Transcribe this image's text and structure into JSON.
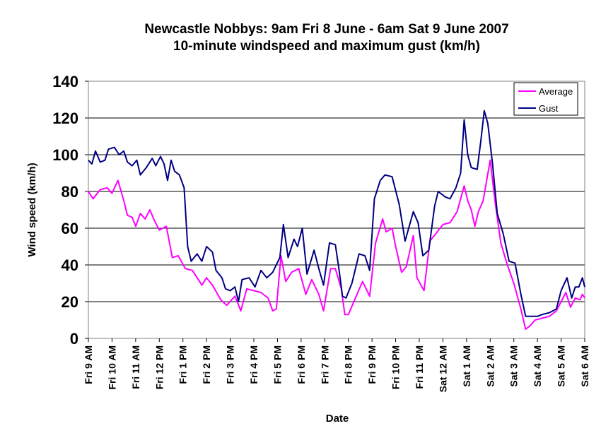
{
  "chart_data": {
    "type": "line",
    "title": "Newcastle Nobbys: 9am Fri 8 June  -  6am Sat 9 June 2007",
    "subtitle": "10-minute windspeed and maximum gust (km/h)",
    "xlabel": "Date",
    "ylabel": "Wind speed (km/h)",
    "ylim": [
      0,
      140
    ],
    "yticks": [
      0,
      20,
      40,
      60,
      80,
      100,
      120,
      140
    ],
    "grid": true,
    "legend_position": "top-right",
    "x_range_hours": [
      0,
      21
    ],
    "categories": [
      "Fri 9 AM",
      "Fri 10 AM",
      "Fri 11 AM",
      "Fri 12 PM",
      "Fri 1 PM",
      "Fri 2 PM",
      "Fri 3 PM",
      "Fri 4 PM",
      "Fri 5 PM",
      "Fri 6 PM",
      "Fri 7 PM",
      "Fri 8 PM",
      "Fri 9 PM",
      "Fri 10 PM",
      "Fri 11 PM",
      "Sat 12 AM",
      "Sat 1 AM",
      "Sat 2 AM",
      "Sat 3 AM",
      "Sat 4 AM",
      "Sat 5 AM",
      "Sat 6 AM"
    ],
    "series": [
      {
        "name": "Average",
        "color": "#ff00ff",
        "points": [
          [
            0,
            80
          ],
          [
            0.2,
            76
          ],
          [
            0.5,
            81
          ],
          [
            0.8,
            82
          ],
          [
            1.0,
            79
          ],
          [
            1.25,
            86
          ],
          [
            1.5,
            75
          ],
          [
            1.65,
            67
          ],
          [
            1.85,
            66
          ],
          [
            2.0,
            61
          ],
          [
            2.2,
            68
          ],
          [
            2.4,
            65
          ],
          [
            2.6,
            70
          ],
          [
            2.8,
            64
          ],
          [
            3.0,
            59
          ],
          [
            3.3,
            61
          ],
          [
            3.55,
            44
          ],
          [
            3.8,
            45
          ],
          [
            4.1,
            38
          ],
          [
            4.4,
            37
          ],
          [
            4.8,
            29
          ],
          [
            5.0,
            33
          ],
          [
            5.25,
            29
          ],
          [
            5.6,
            21
          ],
          [
            5.85,
            18
          ],
          [
            6.2,
            23
          ],
          [
            6.45,
            15
          ],
          [
            6.7,
            27
          ],
          [
            7.0,
            26
          ],
          [
            7.3,
            25
          ],
          [
            7.6,
            22
          ],
          [
            7.8,
            15
          ],
          [
            7.95,
            16
          ],
          [
            8.15,
            45
          ],
          [
            8.35,
            31
          ],
          [
            8.6,
            36
          ],
          [
            8.9,
            38
          ],
          [
            9.2,
            24
          ],
          [
            9.45,
            32
          ],
          [
            9.75,
            24
          ],
          [
            9.95,
            15
          ],
          [
            10.25,
            38
          ],
          [
            10.45,
            38
          ],
          [
            10.7,
            27
          ],
          [
            10.85,
            13
          ],
          [
            11.0,
            13
          ],
          [
            11.3,
            22
          ],
          [
            11.6,
            31
          ],
          [
            11.9,
            23
          ],
          [
            12.15,
            52
          ],
          [
            12.45,
            65
          ],
          [
            12.6,
            58
          ],
          [
            12.85,
            60
          ],
          [
            13.0,
            50
          ],
          [
            13.25,
            36
          ],
          [
            13.45,
            39
          ],
          [
            13.75,
            56
          ],
          [
            13.9,
            33
          ],
          [
            14.2,
            26
          ],
          [
            14.45,
            53
          ],
          [
            14.7,
            57
          ],
          [
            15.0,
            62
          ],
          [
            15.3,
            63
          ],
          [
            15.6,
            69
          ],
          [
            15.9,
            83
          ],
          [
            16.05,
            75
          ],
          [
            16.2,
            70
          ],
          [
            16.35,
            61
          ],
          [
            16.5,
            69
          ],
          [
            16.7,
            75
          ],
          [
            17.0,
            97
          ],
          [
            17.2,
            75
          ],
          [
            17.45,
            52
          ],
          [
            17.7,
            41
          ],
          [
            18.0,
            30
          ],
          [
            18.3,
            16
          ],
          [
            18.5,
            5
          ],
          [
            18.7,
            7
          ],
          [
            18.9,
            10
          ],
          [
            19.2,
            11
          ],
          [
            19.5,
            12
          ],
          [
            19.8,
            15
          ],
          [
            20.0,
            20
          ],
          [
            20.2,
            25
          ],
          [
            20.4,
            17
          ],
          [
            20.6,
            22
          ],
          [
            20.8,
            21
          ],
          [
            20.9,
            24
          ],
          [
            21.0,
            22
          ]
        ]
      },
      {
        "name": "Gust",
        "color": "#000080",
        "points": [
          [
            0,
            97
          ],
          [
            0.15,
            95
          ],
          [
            0.3,
            102
          ],
          [
            0.5,
            96
          ],
          [
            0.7,
            97
          ],
          [
            0.85,
            103
          ],
          [
            1.1,
            104
          ],
          [
            1.3,
            100
          ],
          [
            1.5,
            102
          ],
          [
            1.65,
            96
          ],
          [
            1.85,
            94
          ],
          [
            2.05,
            97
          ],
          [
            2.2,
            89
          ],
          [
            2.45,
            93
          ],
          [
            2.7,
            98
          ],
          [
            2.85,
            94
          ],
          [
            3.05,
            99
          ],
          [
            3.2,
            95
          ],
          [
            3.35,
            86
          ],
          [
            3.5,
            97
          ],
          [
            3.65,
            91
          ],
          [
            3.85,
            89
          ],
          [
            4.05,
            82
          ],
          [
            4.2,
            50
          ],
          [
            4.35,
            42
          ],
          [
            4.6,
            46
          ],
          [
            4.8,
            42
          ],
          [
            5.0,
            50
          ],
          [
            5.25,
            47
          ],
          [
            5.4,
            37
          ],
          [
            5.65,
            33
          ],
          [
            5.8,
            27
          ],
          [
            6.0,
            26
          ],
          [
            6.2,
            28
          ],
          [
            6.35,
            20
          ],
          [
            6.5,
            32
          ],
          [
            6.8,
            33
          ],
          [
            7.05,
            28
          ],
          [
            7.3,
            37
          ],
          [
            7.55,
            33
          ],
          [
            7.8,
            36
          ],
          [
            8.1,
            44
          ],
          [
            8.25,
            62
          ],
          [
            8.45,
            44
          ],
          [
            8.7,
            54
          ],
          [
            8.85,
            50
          ],
          [
            9.05,
            60
          ],
          [
            9.25,
            35
          ],
          [
            9.55,
            48
          ],
          [
            9.75,
            38
          ],
          [
            9.95,
            29
          ],
          [
            10.2,
            52
          ],
          [
            10.45,
            51
          ],
          [
            10.6,
            38
          ],
          [
            10.75,
            23
          ],
          [
            10.9,
            22
          ],
          [
            11.15,
            30
          ],
          [
            11.45,
            46
          ],
          [
            11.7,
            45
          ],
          [
            11.9,
            37
          ],
          [
            12.1,
            76
          ],
          [
            12.35,
            86
          ],
          [
            12.55,
            89
          ],
          [
            12.85,
            88
          ],
          [
            13.15,
            73
          ],
          [
            13.4,
            53
          ],
          [
            13.75,
            69
          ],
          [
            13.95,
            63
          ],
          [
            14.15,
            45
          ],
          [
            14.4,
            48
          ],
          [
            14.65,
            72
          ],
          [
            14.8,
            80
          ],
          [
            15.1,
            77
          ],
          [
            15.3,
            76
          ],
          [
            15.55,
            82
          ],
          [
            15.75,
            90
          ],
          [
            15.9,
            119
          ],
          [
            16.05,
            100
          ],
          [
            16.2,
            93
          ],
          [
            16.45,
            92
          ],
          [
            16.6,
            107
          ],
          [
            16.75,
            124
          ],
          [
            16.9,
            117
          ],
          [
            17.1,
            95
          ],
          [
            17.3,
            68
          ],
          [
            17.55,
            57
          ],
          [
            17.8,
            42
          ],
          [
            18.05,
            41
          ],
          [
            18.3,
            24
          ],
          [
            18.5,
            12
          ],
          [
            18.8,
            12
          ],
          [
            19.0,
            12
          ],
          [
            19.2,
            13
          ],
          [
            19.5,
            14
          ],
          [
            19.8,
            16
          ],
          [
            20.0,
            26
          ],
          [
            20.25,
            33
          ],
          [
            20.45,
            22
          ],
          [
            20.6,
            28
          ],
          [
            20.75,
            28
          ],
          [
            20.9,
            33
          ],
          [
            21.0,
            28
          ]
        ]
      }
    ]
  }
}
